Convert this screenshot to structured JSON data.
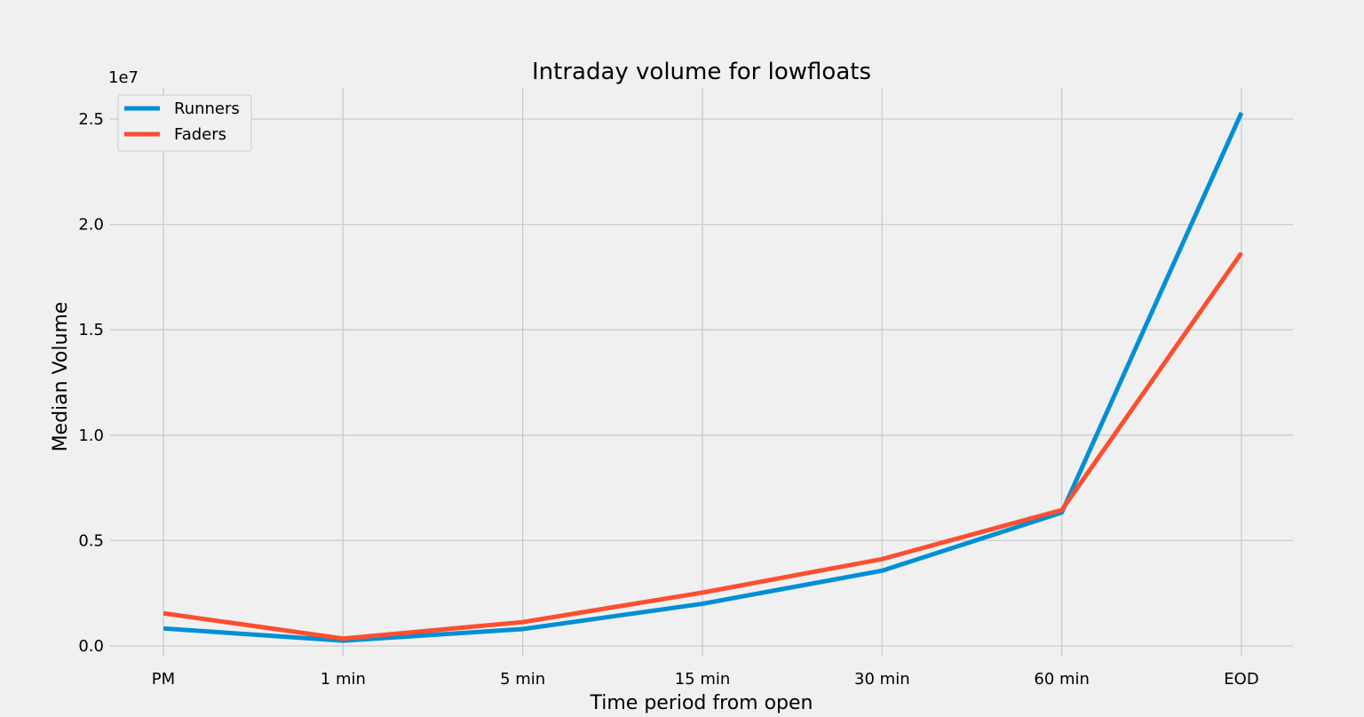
{
  "chart_data": {
    "type": "line",
    "title": "Intraday volume for lowfloats",
    "xlabel": "Time period from open",
    "ylabel": "Median Volume",
    "y_offset_label": "1e7",
    "categories": [
      "PM",
      "1 min",
      "5 min",
      "15 min",
      "30 min",
      "60 min",
      "EOD"
    ],
    "y_ticks": [
      0.0,
      0.5,
      1.0,
      1.5,
      2.0,
      2.5
    ],
    "y_tick_labels": [
      "0.0",
      "0.5",
      "1.0",
      "1.5",
      "2.0",
      "2.5"
    ],
    "ylim": [
      -0.05,
      2.65
    ],
    "y_scale_note": "values in units of 1e7",
    "grid": true,
    "legend_position": "top-left",
    "series": [
      {
        "name": "Runners",
        "color": "#008fd5",
        "values": [
          0.083,
          0.025,
          0.08,
          0.2,
          0.357,
          0.633,
          2.53
        ]
      },
      {
        "name": "Faders",
        "color": "#fc4f30",
        "values": [
          0.155,
          0.035,
          0.113,
          0.253,
          0.412,
          0.645,
          1.865
        ]
      }
    ]
  }
}
